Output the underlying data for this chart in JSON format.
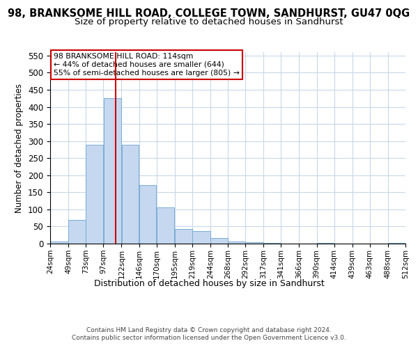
{
  "title": "98, BRANKSOME HILL ROAD, COLLEGE TOWN, SANDHURST, GU47 0QG",
  "subtitle": "Size of property relative to detached houses in Sandhurst",
  "xlabel": "Distribution of detached houses by size in Sandhurst",
  "ylabel": "Number of detached properties",
  "bar_color": "#c5d8f0",
  "bar_edge_color": "#7aadd4",
  "grid_color": "#c8d8e8",
  "vline_color": "#cc0000",
  "vline_x": 114,
  "annotation_line1": "98 BRANKSOME HILL ROAD: 114sqm",
  "annotation_line2": "← 44% of detached houses are smaller (644)",
  "annotation_line3": "55% of semi-detached houses are larger (805) →",
  "annotation_box_color": "#ffffff",
  "annotation_border_color": "#cc0000",
  "footer_text": "Contains HM Land Registry data © Crown copyright and database right 2024.\nContains public sector information licensed under the Open Government Licence v3.0.",
  "bins": [
    24,
    49,
    73,
    97,
    122,
    146,
    170,
    195,
    219,
    244,
    268,
    292,
    317,
    341,
    366,
    390,
    414,
    439,
    463,
    488,
    512
  ],
  "counts": [
    7,
    70,
    290,
    425,
    290,
    172,
    105,
    43,
    37,
    16,
    7,
    5,
    3,
    1,
    0,
    2,
    0,
    0,
    0,
    2
  ],
  "ylim": [
    0,
    560
  ],
  "xlim": [
    24,
    512
  ],
  "background_color": "#ffffff",
  "title_fontsize": 10.5,
  "subtitle_fontsize": 9.5,
  "footer_fontsize": 6.5
}
